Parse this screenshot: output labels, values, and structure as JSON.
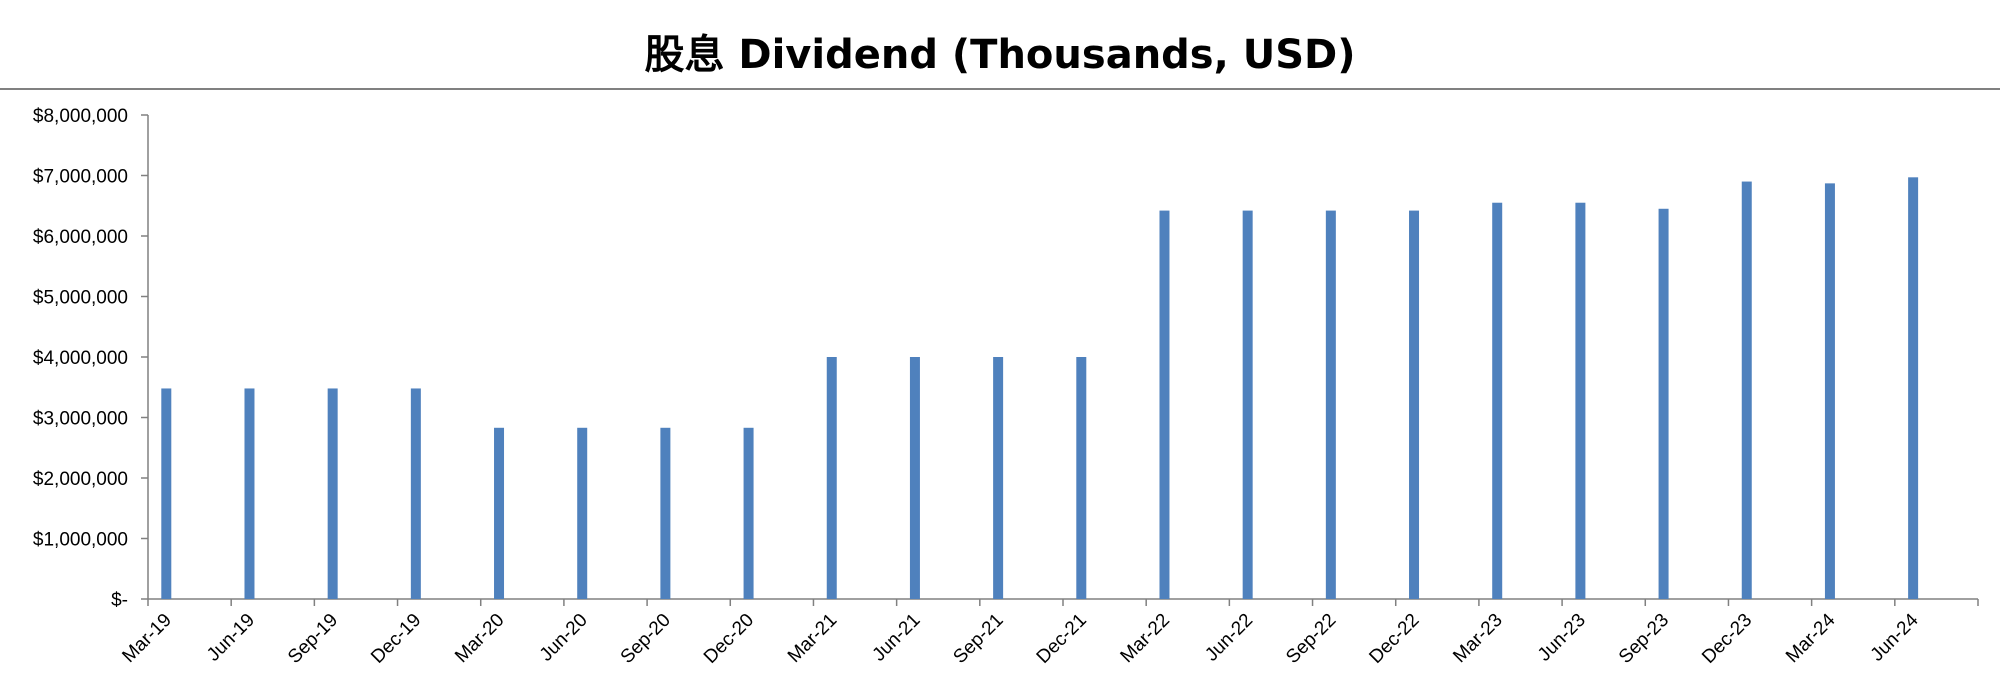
{
  "chart_data": {
    "type": "bar",
    "title": "股息 Dividend (Thousands, USD)",
    "xlabel": "",
    "ylabel": "",
    "ylim": [
      0,
      8000000
    ],
    "yticks": [
      "$-",
      "$1,000,000",
      "$2,000,000",
      "$3,000,000",
      "$4,000,000",
      "$5,000,000",
      "$6,000,000",
      "$7,000,000",
      "$8,000,000"
    ],
    "categories": [
      "Mar-19",
      "Jun-19",
      "Sep-19",
      "Dec-19",
      "Mar-20",
      "Jun-20",
      "Sep-20",
      "Dec-20",
      "Mar-21",
      "Jun-21",
      "Sep-21",
      "Dec-21",
      "Mar-22",
      "Jun-22",
      "Sep-22",
      "Dec-22",
      "Mar-23",
      "Jun-23",
      "Sep-23",
      "Dec-23",
      "Mar-24",
      "Jun-24"
    ],
    "values": [
      3480000,
      3480000,
      3480000,
      3480000,
      2830000,
      2830000,
      2830000,
      2830000,
      4000000,
      4000000,
      4000000,
      4000000,
      6420000,
      6420000,
      6420000,
      6420000,
      6550000,
      6550000,
      6450000,
      6900000,
      6870000,
      6970000
    ],
    "grid": false,
    "legend": "none",
    "bar_color": "#4F81BD"
  }
}
